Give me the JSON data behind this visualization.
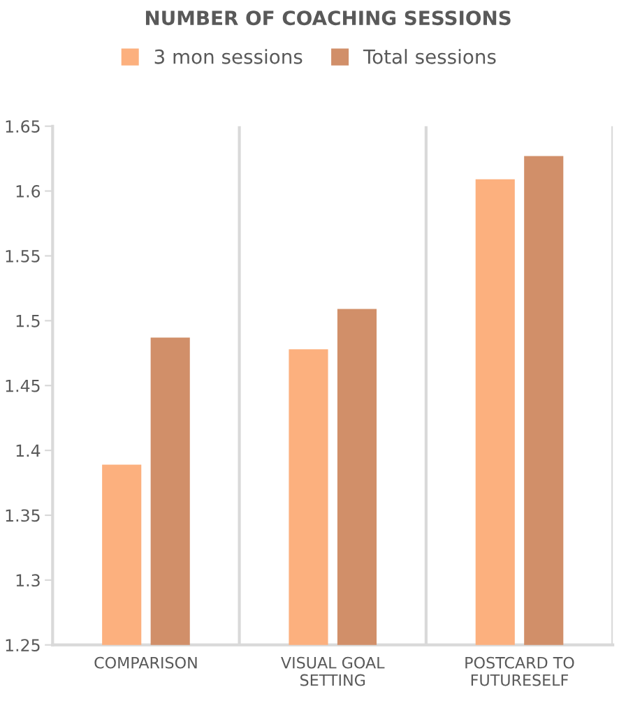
{
  "chart_data": {
    "type": "bar",
    "title": "NUMBER OF COACHING SESSIONS",
    "categories": [
      "COMPARISON",
      "VISUAL GOAL\nSETTING",
      "POSTCARD TO\nFUTURESELF"
    ],
    "series": [
      {
        "name": "3 mon sessions",
        "color": "#fcb07e",
        "values": [
          1.389,
          1.478,
          1.609
        ]
      },
      {
        "name": "Total sessions",
        "color": "#d18f69",
        "values": [
          1.487,
          1.509,
          1.627
        ]
      }
    ],
    "ylim": [
      1.25,
      1.65
    ],
    "yticks": [
      1.25,
      1.3,
      1.35,
      1.4,
      1.45,
      1.5,
      1.55,
      1.6,
      1.65
    ],
    "grid": "x",
    "legend": "top"
  }
}
